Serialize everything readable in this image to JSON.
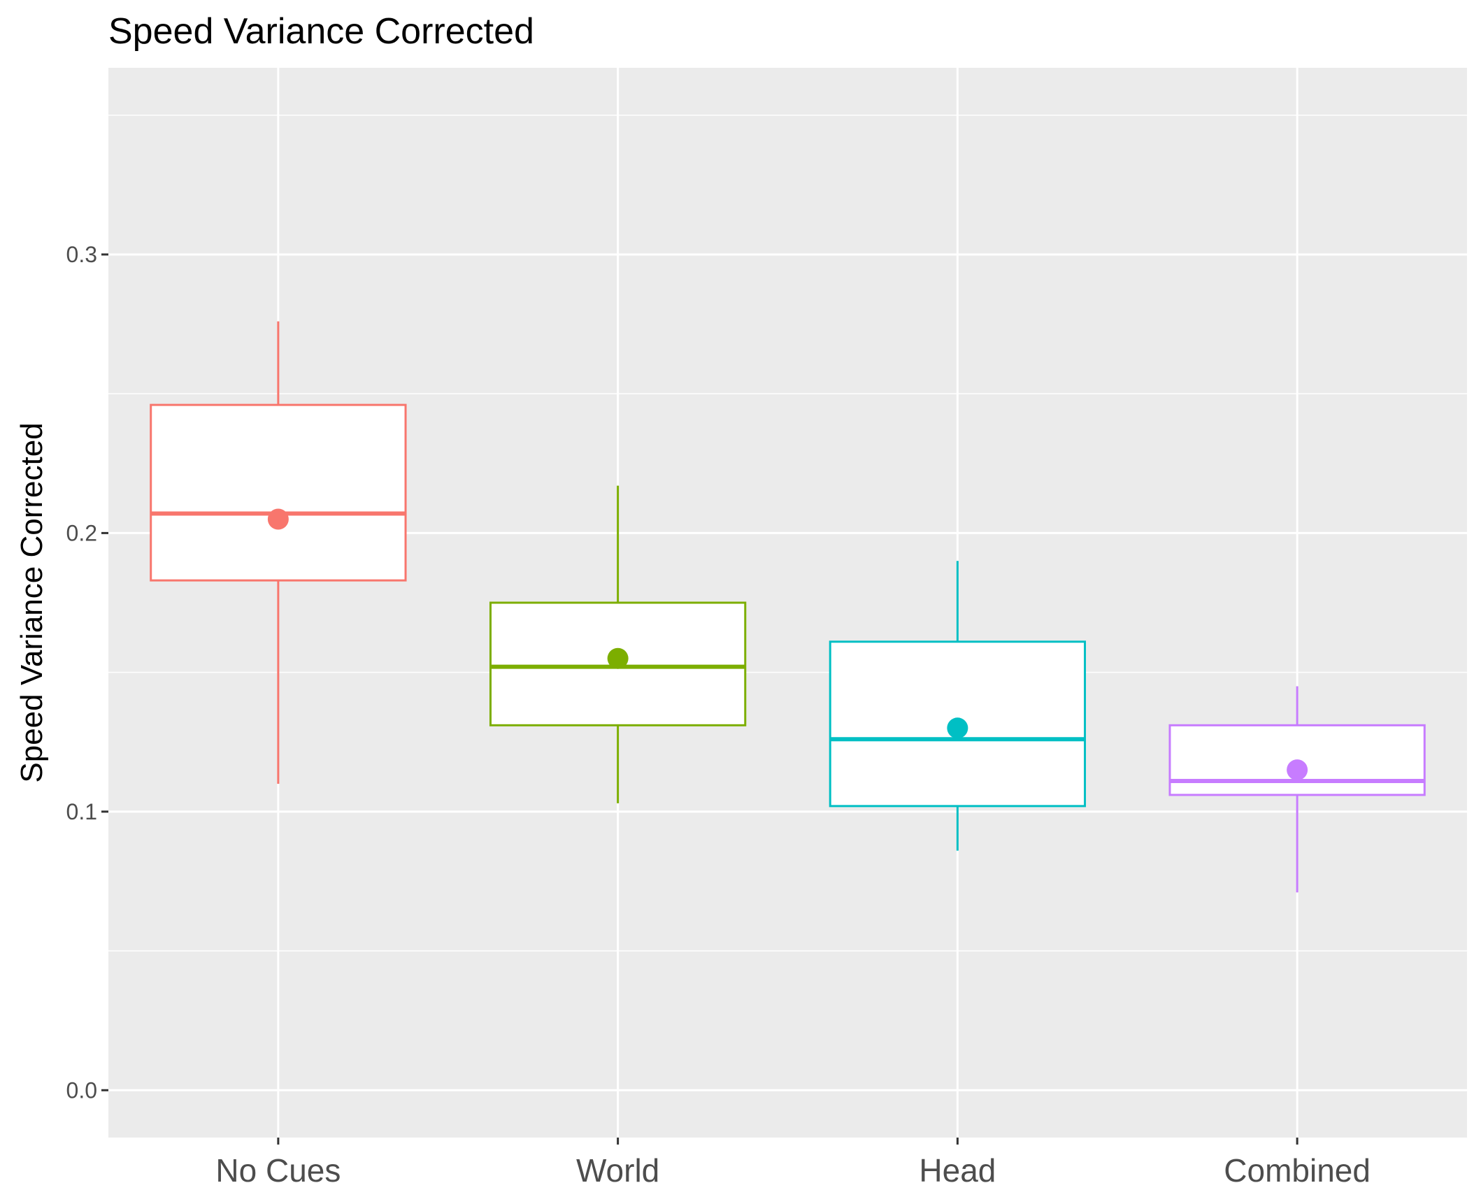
{
  "chart_data": {
    "type": "box",
    "title": "Speed Variance Corrected",
    "xlabel": "",
    "ylabel": "Speed Variance Corrected",
    "ylim": [
      -0.017,
      0.367
    ],
    "yticks": [
      0.0,
      0.1,
      0.2,
      0.3
    ],
    "ytick_labels": [
      "0.0",
      "0.1",
      "0.2",
      "0.3"
    ],
    "grid": true,
    "legend": "none",
    "categories": [
      "No Cues",
      "World",
      "Head",
      "Combined"
    ],
    "colors": [
      "#F8766D",
      "#7CAE00",
      "#00BFC4",
      "#C77CFF"
    ],
    "series": [
      {
        "category": "No Cues",
        "whisker_low": 0.11,
        "q1": 0.183,
        "median": 0.207,
        "q3": 0.246,
        "whisker_high": 0.276,
        "mean": 0.205
      },
      {
        "category": "World",
        "whisker_low": 0.103,
        "q1": 0.131,
        "median": 0.152,
        "q3": 0.175,
        "whisker_high": 0.217,
        "mean": 0.155
      },
      {
        "category": "Head",
        "whisker_low": 0.086,
        "q1": 0.102,
        "median": 0.126,
        "q3": 0.161,
        "whisker_high": 0.19,
        "mean": 0.13
      },
      {
        "category": "Combined",
        "whisker_low": 0.071,
        "q1": 0.106,
        "median": 0.111,
        "q3": 0.131,
        "whisker_high": 0.145,
        "mean": 0.115
      }
    ]
  }
}
